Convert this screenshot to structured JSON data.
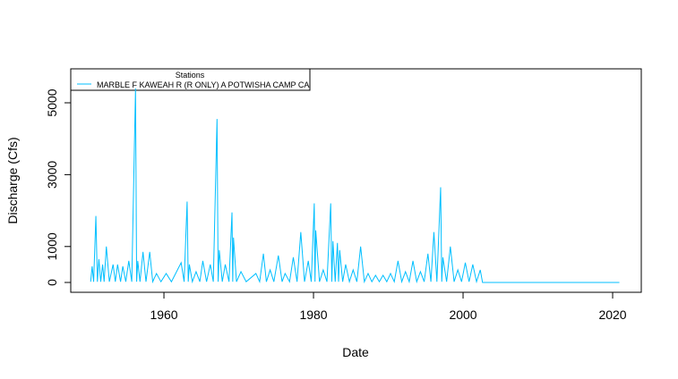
{
  "chart_data": {
    "type": "line",
    "x_label": "Date",
    "y_label": "Discharge (Cfs)",
    "legend_title": "Stations",
    "legend": "topleft",
    "x": [
      1950.2,
      1950.4,
      1950.6,
      1950.9,
      1951.1,
      1951.3,
      1951.55,
      1951.8,
      1952.0,
      1952.3,
      1952.7,
      1953.2,
      1953.5,
      1953.8,
      1954.2,
      1954.5,
      1954.9,
      1955.3,
      1955.7,
      1956.2,
      1956.35,
      1956.5,
      1956.8,
      1957.2,
      1957.6,
      1958.1,
      1958.5,
      1959.0,
      1959.6,
      1960.3,
      1961.0,
      1962.3,
      1962.7,
      1963.1,
      1963.25,
      1963.4,
      1963.8,
      1964.3,
      1964.8,
      1965.2,
      1965.7,
      1966.2,
      1966.6,
      1967.1,
      1967.25,
      1967.4,
      1967.8,
      1968.2,
      1968.7,
      1969.1,
      1969.2,
      1969.3,
      1969.7,
      1970.3,
      1971.0,
      1972.3,
      1972.8,
      1973.3,
      1973.7,
      1974.2,
      1974.7,
      1975.3,
      1975.8,
      1976.2,
      1976.8,
      1977.3,
      1977.8,
      1978.3,
      1978.8,
      1979.3,
      1979.7,
      1980.1,
      1980.2,
      1980.3,
      1980.8,
      1981.3,
      1981.8,
      1982.3,
      1982.45,
      1982.6,
      1982.9,
      1983.2,
      1983.35,
      1983.5,
      1983.9,
      1984.3,
      1984.8,
      1985.3,
      1985.8,
      1986.3,
      1986.8,
      1987.3,
      1987.8,
      1988.3,
      1988.8,
      1989.3,
      1989.8,
      1990.3,
      1990.8,
      1991.3,
      1991.8,
      1992.3,
      1992.8,
      1993.3,
      1993.8,
      1994.3,
      1994.8,
      1995.3,
      1995.7,
      1996.1,
      1996.5,
      1997.0,
      1997.15,
      1997.3,
      1997.8,
      1998.3,
      1998.8,
      1999.3,
      1999.8,
      2000.3,
      2000.8,
      2001.3,
      2001.8,
      2002.3,
      2002.6,
      2020.9
    ],
    "series": [
      {
        "name": "MARBLE F KAWEAH R (R ONLY) A POTWISHA CAMP CA",
        "color": "#00bfff",
        "values": [
          20,
          450,
          20,
          1850,
          20,
          650,
          20,
          500,
          20,
          1000,
          20,
          500,
          20,
          500,
          20,
          450,
          20,
          600,
          20,
          5400,
          20,
          600,
          20,
          850,
          20,
          850,
          20,
          250,
          20,
          250,
          20,
          550,
          20,
          2250,
          20,
          500,
          20,
          300,
          20,
          600,
          20,
          500,
          20,
          4550,
          20,
          900,
          20,
          500,
          20,
          1950,
          20,
          1250,
          20,
          300,
          20,
          250,
          20,
          800,
          20,
          350,
          20,
          750,
          20,
          250,
          20,
          700,
          20,
          1400,
          20,
          600,
          20,
          2200,
          20,
          1450,
          20,
          350,
          20,
          2200,
          20,
          1150,
          20,
          1100,
          20,
          900,
          20,
          500,
          20,
          350,
          20,
          1000,
          20,
          250,
          20,
          200,
          20,
          200,
          20,
          250,
          20,
          600,
          20,
          300,
          20,
          600,
          20,
          300,
          20,
          800,
          20,
          1400,
          20,
          2650,
          20,
          700,
          20,
          1000,
          20,
          350,
          20,
          550,
          20,
          500,
          20,
          350,
          0,
          0
        ]
      }
    ],
    "xlim": [
      1947.54,
      2023.83
    ],
    "xticks": [
      1960,
      1980,
      2000,
      2020
    ],
    "ylim": [
      -274,
      5945
    ],
    "yticks": [
      0,
      1000,
      3000,
      5000
    ]
  }
}
